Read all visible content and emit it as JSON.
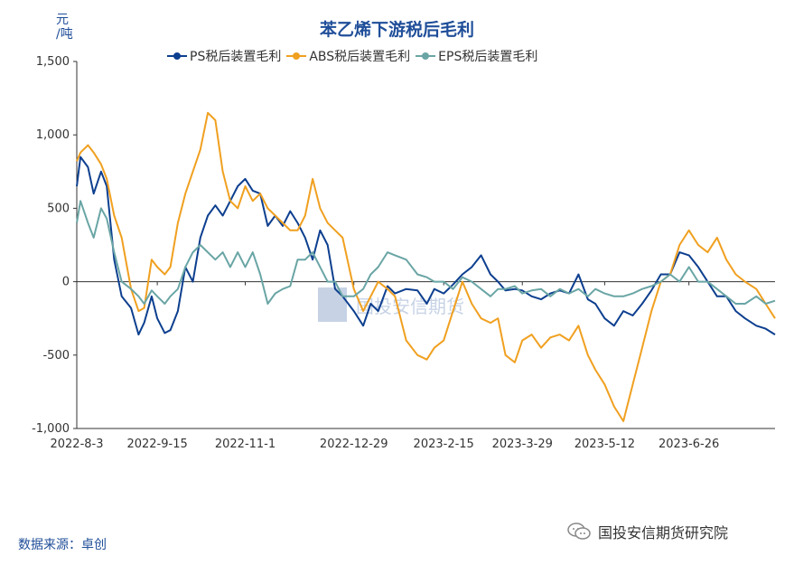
{
  "title": "苯乙烯下游税后毛利",
  "unit": [
    "元",
    "/吨"
  ],
  "source": "数据来源：卓创",
  "brand": "国投安信期货研究院",
  "watermark": "国投安信期货",
  "chart_data": {
    "type": "line",
    "title": "苯乙烯下游税后毛利",
    "ylabel": "元/吨",
    "ylim": [
      -1000,
      1500
    ],
    "yticks": [
      -1000,
      -500,
      0,
      500,
      1000,
      1500
    ],
    "ytick_labels": [
      "-1,000",
      "-500",
      "0",
      "500",
      "1,000",
      "1,500"
    ],
    "xlim": [
      "2022-08-03",
      "2023-08-11"
    ],
    "xticks": [
      "2022-08-03",
      "2022-09-15",
      "2022-11-01",
      "2022-12-29",
      "2023-02-15",
      "2023-03-29",
      "2023-05-12",
      "2023-06-26"
    ],
    "xtick_labels": [
      "2022-8-3",
      "2022-9-15",
      "2022-11-1",
      "2022-12-29",
      "2023-2-15",
      "2023-3-29",
      "2023-5-12",
      "2023-6-26"
    ],
    "legend_position": "top",
    "grid": false,
    "series": [
      {
        "name": "PS税后装置毛利",
        "color": "#0d3f8f",
        "points": [
          [
            "2022-08-03",
            650
          ],
          [
            "2022-08-05",
            850
          ],
          [
            "2022-08-09",
            780
          ],
          [
            "2022-08-12",
            600
          ],
          [
            "2022-08-16",
            750
          ],
          [
            "2022-08-19",
            650
          ],
          [
            "2022-08-23",
            150
          ],
          [
            "2022-08-27",
            -100
          ],
          [
            "2022-09-01",
            -180
          ],
          [
            "2022-09-05",
            -360
          ],
          [
            "2022-09-08",
            -280
          ],
          [
            "2022-09-12",
            -100
          ],
          [
            "2022-09-15",
            -250
          ],
          [
            "2022-09-19",
            -350
          ],
          [
            "2022-09-22",
            -330
          ],
          [
            "2022-09-26",
            -200
          ],
          [
            "2022-09-30",
            100
          ],
          [
            "2022-10-04",
            0
          ],
          [
            "2022-10-08",
            300
          ],
          [
            "2022-10-12",
            450
          ],
          [
            "2022-10-16",
            520
          ],
          [
            "2022-10-20",
            450
          ],
          [
            "2022-10-24",
            550
          ],
          [
            "2022-10-28",
            650
          ],
          [
            "2022-11-01",
            700
          ],
          [
            "2022-11-05",
            620
          ],
          [
            "2022-11-09",
            600
          ],
          [
            "2022-11-13",
            380
          ],
          [
            "2022-11-17",
            450
          ],
          [
            "2022-11-21",
            380
          ],
          [
            "2022-11-25",
            480
          ],
          [
            "2022-11-29",
            400
          ],
          [
            "2022-12-03",
            300
          ],
          [
            "2022-12-07",
            150
          ],
          [
            "2022-12-11",
            350
          ],
          [
            "2022-12-15",
            250
          ],
          [
            "2022-12-19",
            -50
          ],
          [
            "2022-12-23",
            -100
          ],
          [
            "2022-12-29",
            -200
          ],
          [
            "2023-01-03",
            -300
          ],
          [
            "2023-01-07",
            -150
          ],
          [
            "2023-01-11",
            -200
          ],
          [
            "2023-01-16",
            -30
          ],
          [
            "2023-01-20",
            -80
          ],
          [
            "2023-01-26",
            -50
          ],
          [
            "2023-02-01",
            -60
          ],
          [
            "2023-02-06",
            -150
          ],
          [
            "2023-02-10",
            -50
          ],
          [
            "2023-02-15",
            -80
          ],
          [
            "2023-02-20",
            -20
          ],
          [
            "2023-02-25",
            50
          ],
          [
            "2023-03-02",
            100
          ],
          [
            "2023-03-07",
            180
          ],
          [
            "2023-03-12",
            50
          ],
          [
            "2023-03-16",
            0
          ],
          [
            "2023-03-20",
            -60
          ],
          [
            "2023-03-25",
            -50
          ],
          [
            "2023-03-29",
            -60
          ],
          [
            "2023-04-03",
            -100
          ],
          [
            "2023-04-08",
            -120
          ],
          [
            "2023-04-13",
            -80
          ],
          [
            "2023-04-18",
            -60
          ],
          [
            "2023-04-23",
            -80
          ],
          [
            "2023-04-28",
            50
          ],
          [
            "2023-05-03",
            -120
          ],
          [
            "2023-05-07",
            -150
          ],
          [
            "2023-05-12",
            -250
          ],
          [
            "2023-05-17",
            -300
          ],
          [
            "2023-05-22",
            -200
          ],
          [
            "2023-05-27",
            -230
          ],
          [
            "2023-06-01",
            -150
          ],
          [
            "2023-06-06",
            -60
          ],
          [
            "2023-06-11",
            50
          ],
          [
            "2023-06-16",
            50
          ],
          [
            "2023-06-21",
            200
          ],
          [
            "2023-06-26",
            180
          ],
          [
            "2023-07-01",
            100
          ],
          [
            "2023-07-06",
            0
          ],
          [
            "2023-07-11",
            -100
          ],
          [
            "2023-07-16",
            -100
          ],
          [
            "2023-07-21",
            -200
          ],
          [
            "2023-07-26",
            -250
          ],
          [
            "2023-08-01",
            -300
          ],
          [
            "2023-08-06",
            -320
          ],
          [
            "2023-08-11",
            -360
          ]
        ]
      },
      {
        "name": "ABS税后装置毛利",
        "color": "#f0a020",
        "points": [
          [
            "2022-08-03",
            820
          ],
          [
            "2022-08-05",
            880
          ],
          [
            "2022-08-09",
            930
          ],
          [
            "2022-08-12",
            880
          ],
          [
            "2022-08-16",
            800
          ],
          [
            "2022-08-19",
            700
          ],
          [
            "2022-08-23",
            450
          ],
          [
            "2022-08-27",
            300
          ],
          [
            "2022-09-01",
            -50
          ],
          [
            "2022-09-05",
            -200
          ],
          [
            "2022-09-08",
            -180
          ],
          [
            "2022-09-12",
            150
          ],
          [
            "2022-09-15",
            100
          ],
          [
            "2022-09-19",
            50
          ],
          [
            "2022-09-22",
            100
          ],
          [
            "2022-09-26",
            400
          ],
          [
            "2022-09-30",
            600
          ],
          [
            "2022-10-04",
            750
          ],
          [
            "2022-10-08",
            900
          ],
          [
            "2022-10-12",
            1150
          ],
          [
            "2022-10-16",
            1100
          ],
          [
            "2022-10-20",
            750
          ],
          [
            "2022-10-24",
            550
          ],
          [
            "2022-10-28",
            500
          ],
          [
            "2022-11-01",
            650
          ],
          [
            "2022-11-05",
            550
          ],
          [
            "2022-11-09",
            600
          ],
          [
            "2022-11-13",
            500
          ],
          [
            "2022-11-17",
            450
          ],
          [
            "2022-11-21",
            400
          ],
          [
            "2022-11-25",
            350
          ],
          [
            "2022-11-29",
            350
          ],
          [
            "2022-12-03",
            450
          ],
          [
            "2022-12-07",
            700
          ],
          [
            "2022-12-11",
            500
          ],
          [
            "2022-12-15",
            400
          ],
          [
            "2022-12-19",
            350
          ],
          [
            "2022-12-23",
            300
          ],
          [
            "2022-12-29",
            -50
          ],
          [
            "2023-01-03",
            -200
          ],
          [
            "2023-01-07",
            -100
          ],
          [
            "2023-01-11",
            0
          ],
          [
            "2023-01-16",
            -50
          ],
          [
            "2023-01-20",
            -100
          ],
          [
            "2023-01-26",
            -400
          ],
          [
            "2023-02-01",
            -500
          ],
          [
            "2023-02-06",
            -530
          ],
          [
            "2023-02-10",
            -450
          ],
          [
            "2023-02-15",
            -400
          ],
          [
            "2023-02-20",
            -200
          ],
          [
            "2023-02-25",
            0
          ],
          [
            "2023-03-02",
            -150
          ],
          [
            "2023-03-07",
            -250
          ],
          [
            "2023-03-12",
            -280
          ],
          [
            "2023-03-16",
            -250
          ],
          [
            "2023-03-20",
            -500
          ],
          [
            "2023-03-25",
            -550
          ],
          [
            "2023-03-29",
            -400
          ],
          [
            "2023-04-03",
            -360
          ],
          [
            "2023-04-08",
            -450
          ],
          [
            "2023-04-13",
            -380
          ],
          [
            "2023-04-18",
            -360
          ],
          [
            "2023-04-23",
            -400
          ],
          [
            "2023-04-28",
            -300
          ],
          [
            "2023-05-03",
            -500
          ],
          [
            "2023-05-07",
            -600
          ],
          [
            "2023-05-12",
            -700
          ],
          [
            "2023-05-17",
            -850
          ],
          [
            "2023-05-22",
            -950
          ],
          [
            "2023-05-27",
            -700
          ],
          [
            "2023-06-01",
            -450
          ],
          [
            "2023-06-06",
            -200
          ],
          [
            "2023-06-11",
            0
          ],
          [
            "2023-06-16",
            50
          ],
          [
            "2023-06-21",
            250
          ],
          [
            "2023-06-26",
            350
          ],
          [
            "2023-07-01",
            250
          ],
          [
            "2023-07-06",
            200
          ],
          [
            "2023-07-11",
            300
          ],
          [
            "2023-07-16",
            150
          ],
          [
            "2023-07-21",
            50
          ],
          [
            "2023-07-26",
            0
          ],
          [
            "2023-08-01",
            -50
          ],
          [
            "2023-08-06",
            -150
          ],
          [
            "2023-08-11",
            -250
          ]
        ]
      },
      {
        "name": "EPS税后装置毛利",
        "color": "#6aa5a5",
        "points": [
          [
            "2022-08-03",
            400
          ],
          [
            "2022-08-05",
            550
          ],
          [
            "2022-08-09",
            400
          ],
          [
            "2022-08-12",
            300
          ],
          [
            "2022-08-16",
            500
          ],
          [
            "2022-08-19",
            430
          ],
          [
            "2022-08-23",
            200
          ],
          [
            "2022-08-27",
            0
          ],
          [
            "2022-09-01",
            -50
          ],
          [
            "2022-09-05",
            -100
          ],
          [
            "2022-09-08",
            -150
          ],
          [
            "2022-09-12",
            -60
          ],
          [
            "2022-09-15",
            -100
          ],
          [
            "2022-09-19",
            -150
          ],
          [
            "2022-09-22",
            -100
          ],
          [
            "2022-09-26",
            -50
          ],
          [
            "2022-09-30",
            100
          ],
          [
            "2022-10-04",
            200
          ],
          [
            "2022-10-08",
            250
          ],
          [
            "2022-10-12",
            200
          ],
          [
            "2022-10-16",
            150
          ],
          [
            "2022-10-20",
            200
          ],
          [
            "2022-10-24",
            100
          ],
          [
            "2022-10-28",
            200
          ],
          [
            "2022-11-01",
            100
          ],
          [
            "2022-11-05",
            200
          ],
          [
            "2022-11-09",
            50
          ],
          [
            "2022-11-13",
            -150
          ],
          [
            "2022-11-17",
            -80
          ],
          [
            "2022-11-21",
            -50
          ],
          [
            "2022-11-25",
            -30
          ],
          [
            "2022-11-29",
            150
          ],
          [
            "2022-12-03",
            150
          ],
          [
            "2022-12-07",
            200
          ],
          [
            "2022-12-11",
            100
          ],
          [
            "2022-12-15",
            0
          ],
          [
            "2022-12-19",
            0
          ],
          [
            "2022-12-23",
            -100
          ],
          [
            "2022-12-29",
            -100
          ],
          [
            "2023-01-03",
            -50
          ],
          [
            "2023-01-07",
            50
          ],
          [
            "2023-01-11",
            100
          ],
          [
            "2023-01-16",
            200
          ],
          [
            "2023-01-20",
            180
          ],
          [
            "2023-01-26",
            150
          ],
          [
            "2023-02-01",
            50
          ],
          [
            "2023-02-06",
            30
          ],
          [
            "2023-02-10",
            0
          ],
          [
            "2023-02-15",
            0
          ],
          [
            "2023-02-20",
            -50
          ],
          [
            "2023-02-25",
            30
          ],
          [
            "2023-03-02",
            0
          ],
          [
            "2023-03-07",
            -50
          ],
          [
            "2023-03-12",
            -100
          ],
          [
            "2023-03-16",
            -50
          ],
          [
            "2023-03-20",
            -50
          ],
          [
            "2023-03-25",
            -30
          ],
          [
            "2023-03-29",
            -80
          ],
          [
            "2023-04-03",
            -60
          ],
          [
            "2023-04-08",
            -50
          ],
          [
            "2023-04-13",
            -100
          ],
          [
            "2023-04-18",
            -50
          ],
          [
            "2023-04-23",
            -80
          ],
          [
            "2023-04-28",
            -50
          ],
          [
            "2023-05-03",
            -100
          ],
          [
            "2023-05-07",
            -50
          ],
          [
            "2023-05-12",
            -80
          ],
          [
            "2023-05-17",
            -100
          ],
          [
            "2023-05-22",
            -100
          ],
          [
            "2023-05-27",
            -80
          ],
          [
            "2023-06-01",
            -50
          ],
          [
            "2023-06-06",
            -30
          ],
          [
            "2023-06-11",
            0
          ],
          [
            "2023-06-16",
            50
          ],
          [
            "2023-06-21",
            0
          ],
          [
            "2023-06-26",
            100
          ],
          [
            "2023-07-01",
            0
          ],
          [
            "2023-07-06",
            0
          ],
          [
            "2023-07-11",
            -50
          ],
          [
            "2023-07-16",
            -100
          ],
          [
            "2023-07-21",
            -150
          ],
          [
            "2023-07-26",
            -150
          ],
          [
            "2023-08-01",
            -100
          ],
          [
            "2023-08-06",
            -150
          ],
          [
            "2023-08-11",
            -130
          ]
        ]
      }
    ]
  }
}
